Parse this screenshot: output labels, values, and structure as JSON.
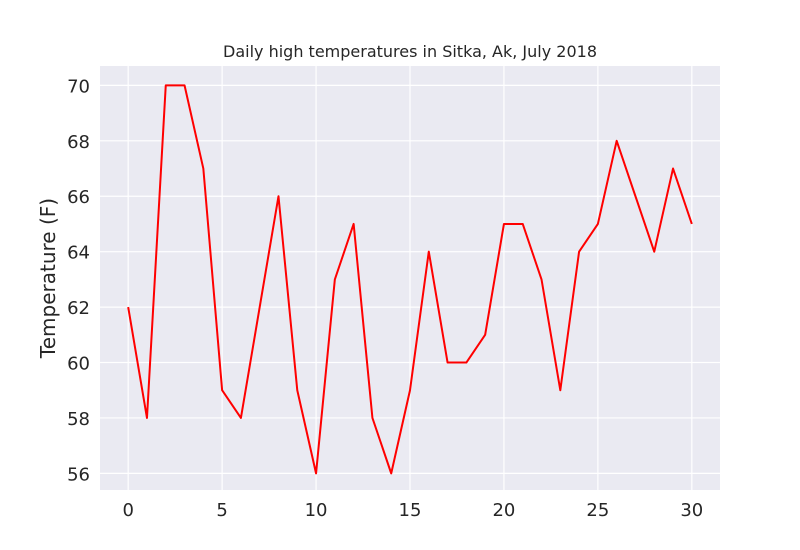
{
  "chart_data": {
    "type": "line",
    "title": "Daily high temperatures in Sitka, Ak, July 2018",
    "xlabel": "",
    "ylabel": "Temperature (F)",
    "x": [
      0,
      1,
      2,
      3,
      4,
      5,
      6,
      7,
      8,
      9,
      10,
      11,
      12,
      13,
      14,
      15,
      16,
      17,
      18,
      19,
      20,
      21,
      22,
      23,
      24,
      25,
      26,
      27,
      28,
      29,
      30
    ],
    "series": [
      {
        "values": [
          62,
          58,
          70,
          70,
          67,
          59,
          58,
          62,
          66,
          59,
          56,
          63,
          65,
          58,
          56,
          59,
          64,
          60,
          60,
          61,
          65,
          65,
          63,
          59,
          64,
          65,
          68,
          66,
          64,
          67,
          65
        ],
        "color": "#ff0000"
      }
    ],
    "xlim": [
      -1.5,
      31.5
    ],
    "ylim": [
      55.4,
      70.7
    ],
    "xticks": [
      0,
      5,
      10,
      15,
      20,
      25,
      30
    ],
    "yticks": [
      56,
      58,
      60,
      62,
      64,
      66,
      68,
      70
    ],
    "grid": true,
    "background": "#eaeaf2",
    "grid_color": "#ffffff"
  }
}
